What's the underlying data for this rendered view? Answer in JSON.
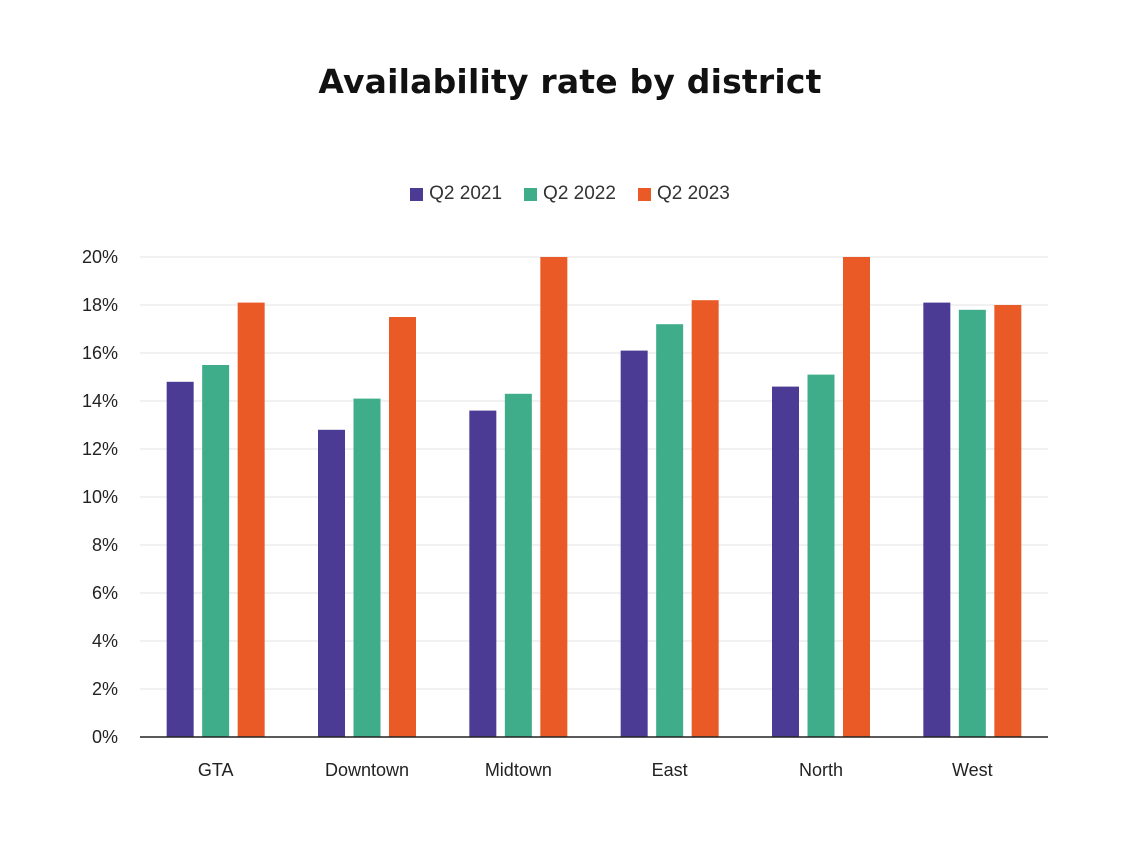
{
  "chart_data": {
    "type": "bar",
    "title": "Availability rate by district",
    "xlabel": "",
    "ylabel": "",
    "categories": [
      "GTA",
      "Downtown",
      "Midtown",
      "East",
      "North",
      "West"
    ],
    "series": [
      {
        "name": "Q2 2021",
        "color": "#4b3b94",
        "values": [
          14.8,
          12.8,
          13.6,
          16.1,
          14.6,
          18.1
        ]
      },
      {
        "name": "Q2 2022",
        "color": "#3fad8a",
        "values": [
          15.5,
          14.1,
          14.3,
          17.2,
          15.1,
          17.8
        ]
      },
      {
        "name": "Q2 2023",
        "color": "#ea5a26",
        "values": [
          18.1,
          17.5,
          20.0,
          18.2,
          20.0,
          18.0
        ]
      }
    ],
    "ylim": [
      0,
      20
    ],
    "yticks": [
      0,
      2,
      4,
      6,
      8,
      10,
      12,
      14,
      16,
      18,
      20
    ],
    "ytick_labels": [
      "0%",
      "2%",
      "4%",
      "6%",
      "8%",
      "10%",
      "12%",
      "14%",
      "16%",
      "18%",
      "20%"
    ],
    "grid": true,
    "legend_position": "top-center"
  }
}
